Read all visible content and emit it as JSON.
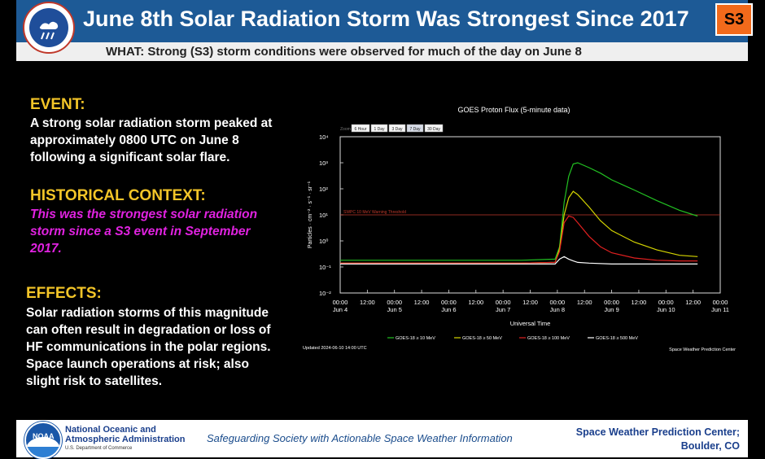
{
  "header": {
    "title": "June 8th Solar Radiation Storm Was Strongest Since 2017",
    "badge": "S3",
    "logo_text": "NATIONAL WEATHER SERVICE"
  },
  "subheader": "WHAT: Strong (S3) storm conditions were observed for much of the day on June 8",
  "event": {
    "heading": "EVENT:",
    "lines": [
      "A strong solar radiation storm peaked at",
      "approximately 0800 UTC on June 8",
      "following a significant solar flare."
    ]
  },
  "context": {
    "heading": "HISTORICAL CONTEXT:",
    "lines": [
      "This was the strongest solar radiation",
      "storm since a S3 event in September",
      "2017."
    ]
  },
  "effects": {
    "heading": "EFFECTS:",
    "lines": [
      "Solar radiation storms of this magnitude",
      "can often result in degradation or loss of",
      "HF communications in the polar regions.",
      "Space launch operations at risk; also",
      "slight risk to satellites."
    ]
  },
  "chart_data": {
    "type": "line",
    "title": "GOES Proton Flux (5-minute data)",
    "zoom_label": "Zoom",
    "zoom_buttons": [
      "6 Hour",
      "1 Day",
      "3 Day",
      "7 Day",
      "30 Day"
    ],
    "ylabel": "Particles · cm⁻² · s⁻¹ · sr⁻¹",
    "xlabel": "Universal Time",
    "yscale": "log",
    "ylim": [
      0.01,
      10000
    ],
    "ytick_labels": [
      "10⁴",
      "10³",
      "10²",
      "10¹",
      "10⁰",
      "10⁻¹",
      "10⁻²"
    ],
    "xlim_hours": [
      0,
      168
    ],
    "xticks": [
      {
        "hour": 0,
        "time": "00:00",
        "day": "Jun 4"
      },
      {
        "hour": 12,
        "time": "12:00",
        "day": ""
      },
      {
        "hour": 24,
        "time": "00:00",
        "day": "Jun 5"
      },
      {
        "hour": 36,
        "time": "12:00",
        "day": ""
      },
      {
        "hour": 48,
        "time": "00:00",
        "day": "Jun 6"
      },
      {
        "hour": 60,
        "time": "12:00",
        "day": ""
      },
      {
        "hour": 72,
        "time": "00:00",
        "day": "Jun 7"
      },
      {
        "hour": 84,
        "time": "12:00",
        "day": ""
      },
      {
        "hour": 96,
        "time": "00:00",
        "day": "Jun 8"
      },
      {
        "hour": 108,
        "time": "12:00",
        "day": ""
      },
      {
        "hour": 120,
        "time": "00:00",
        "day": "Jun 9"
      },
      {
        "hour": 132,
        "time": "12:00",
        "day": ""
      },
      {
        "hour": 144,
        "time": "00:00",
        "day": "Jun 10"
      },
      {
        "hour": 156,
        "time": "12:00",
        "day": ""
      },
      {
        "hour": 168,
        "time": "00:00",
        "day": "Jun 11"
      }
    ],
    "threshold": {
      "value": 10,
      "label": "SWPC 10 MeV Warning Threshold",
      "color": "#c0392b"
    },
    "series": [
      {
        "name": "GOES-18 ≥ 10 MeV",
        "color": "#22c122",
        "x": [
          0,
          20,
          40,
          60,
          80,
          95,
          97,
          99,
          101,
          103,
          105,
          110,
          115,
          120,
          130,
          140,
          150,
          158
        ],
        "y": [
          0.18,
          0.18,
          0.18,
          0.18,
          0.18,
          0.2,
          0.6,
          30,
          300,
          900,
          1000,
          650,
          400,
          220,
          90,
          35,
          15,
          9
        ]
      },
      {
        "name": "GOES-18 ≥ 50 MeV",
        "color": "#d4d400",
        "x": [
          0,
          20,
          40,
          60,
          80,
          95,
          97,
          99,
          101,
          103,
          105,
          110,
          115,
          120,
          130,
          140,
          150,
          158
        ],
        "y": [
          0.14,
          0.14,
          0.14,
          0.14,
          0.14,
          0.15,
          0.5,
          10,
          45,
          80,
          60,
          20,
          6,
          2.5,
          0.9,
          0.45,
          0.28,
          0.25
        ]
      },
      {
        "name": "GOES-18 ≥ 100 MeV",
        "color": "#e02020",
        "x": [
          0,
          20,
          40,
          60,
          80,
          95,
          97,
          99,
          101,
          103,
          105,
          110,
          115,
          120,
          130,
          140,
          150,
          158
        ],
        "y": [
          0.14,
          0.14,
          0.14,
          0.14,
          0.14,
          0.15,
          0.4,
          5,
          9,
          8,
          5,
          1.5,
          0.6,
          0.35,
          0.22,
          0.18,
          0.17,
          0.17
        ]
      },
      {
        "name": "GOES-18 ≥ 500 MeV",
        "color": "#ffffff",
        "x": [
          0,
          20,
          40,
          60,
          80,
          95,
          97,
          99,
          101,
          103,
          105,
          110,
          120,
          130,
          140,
          150,
          158
        ],
        "y": [
          0.13,
          0.13,
          0.13,
          0.13,
          0.13,
          0.13,
          0.2,
          0.25,
          0.2,
          0.17,
          0.15,
          0.14,
          0.13,
          0.13,
          0.13,
          0.13,
          0.13
        ]
      }
    ],
    "updated": "Updated 2024-06-10 14:00 UTC",
    "credit": "Space Weather Prediction Center"
  },
  "footer": {
    "logo_text": "NOAA",
    "org_line1": "National Oceanic and",
    "org_line2": "Atmospheric Administration",
    "org_line3": "U.S. Department of Commerce",
    "slogan": "Safeguarding Society with Actionable Space Weather Information",
    "swpc_line1": "Space Weather Prediction Center;",
    "swpc_line2": "Boulder, CO"
  }
}
